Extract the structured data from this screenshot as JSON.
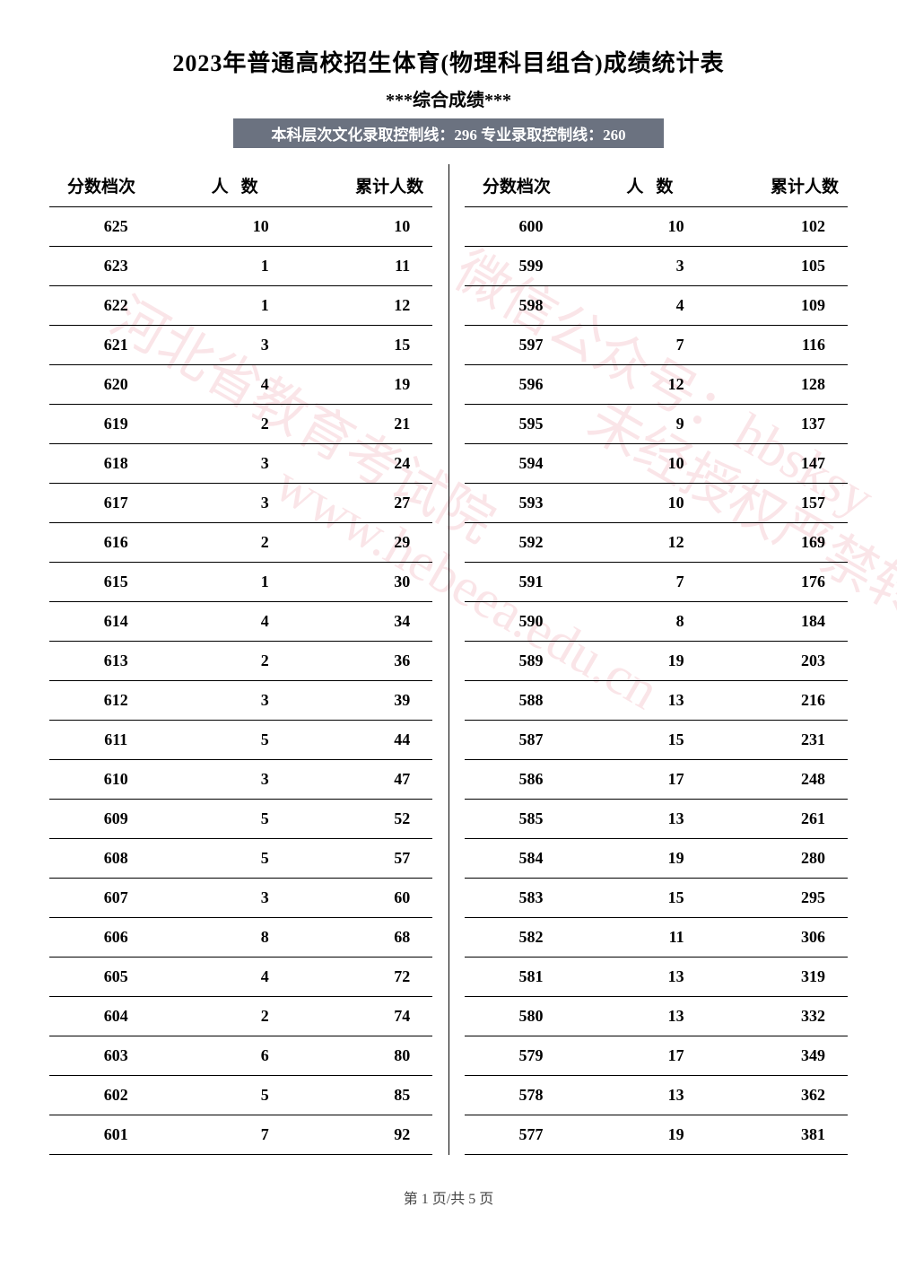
{
  "title": "2023年普通高校招生体育(物理科目组合)成绩统计表",
  "subtitle": "***综合成绩***",
  "info_bar": "本科层次文化录取控制线：296 专业录取控制线：260",
  "headers": {
    "col1": "分数档次",
    "col2": "人数",
    "col3": "累计人数"
  },
  "left_table": {
    "rows": [
      {
        "score": "625",
        "count": "10",
        "cumulative": "10"
      },
      {
        "score": "623",
        "count": "1",
        "cumulative": "11"
      },
      {
        "score": "622",
        "count": "1",
        "cumulative": "12"
      },
      {
        "score": "621",
        "count": "3",
        "cumulative": "15"
      },
      {
        "score": "620",
        "count": "4",
        "cumulative": "19"
      },
      {
        "score": "619",
        "count": "2",
        "cumulative": "21"
      },
      {
        "score": "618",
        "count": "3",
        "cumulative": "24"
      },
      {
        "score": "617",
        "count": "3",
        "cumulative": "27"
      },
      {
        "score": "616",
        "count": "2",
        "cumulative": "29"
      },
      {
        "score": "615",
        "count": "1",
        "cumulative": "30"
      },
      {
        "score": "614",
        "count": "4",
        "cumulative": "34"
      },
      {
        "score": "613",
        "count": "2",
        "cumulative": "36"
      },
      {
        "score": "612",
        "count": "3",
        "cumulative": "39"
      },
      {
        "score": "611",
        "count": "5",
        "cumulative": "44"
      },
      {
        "score": "610",
        "count": "3",
        "cumulative": "47"
      },
      {
        "score": "609",
        "count": "5",
        "cumulative": "52"
      },
      {
        "score": "608",
        "count": "5",
        "cumulative": "57"
      },
      {
        "score": "607",
        "count": "3",
        "cumulative": "60"
      },
      {
        "score": "606",
        "count": "8",
        "cumulative": "68"
      },
      {
        "score": "605",
        "count": "4",
        "cumulative": "72"
      },
      {
        "score": "604",
        "count": "2",
        "cumulative": "74"
      },
      {
        "score": "603",
        "count": "6",
        "cumulative": "80"
      },
      {
        "score": "602",
        "count": "5",
        "cumulative": "85"
      },
      {
        "score": "601",
        "count": "7",
        "cumulative": "92"
      }
    ]
  },
  "right_table": {
    "rows": [
      {
        "score": "600",
        "count": "10",
        "cumulative": "102"
      },
      {
        "score": "599",
        "count": "3",
        "cumulative": "105"
      },
      {
        "score": "598",
        "count": "4",
        "cumulative": "109"
      },
      {
        "score": "597",
        "count": "7",
        "cumulative": "116"
      },
      {
        "score": "596",
        "count": "12",
        "cumulative": "128"
      },
      {
        "score": "595",
        "count": "9",
        "cumulative": "137"
      },
      {
        "score": "594",
        "count": "10",
        "cumulative": "147"
      },
      {
        "score": "593",
        "count": "10",
        "cumulative": "157"
      },
      {
        "score": "592",
        "count": "12",
        "cumulative": "169"
      },
      {
        "score": "591",
        "count": "7",
        "cumulative": "176"
      },
      {
        "score": "590",
        "count": "8",
        "cumulative": "184"
      },
      {
        "score": "589",
        "count": "19",
        "cumulative": "203"
      },
      {
        "score": "588",
        "count": "13",
        "cumulative": "216"
      },
      {
        "score": "587",
        "count": "15",
        "cumulative": "231"
      },
      {
        "score": "586",
        "count": "17",
        "cumulative": "248"
      },
      {
        "score": "585",
        "count": "13",
        "cumulative": "261"
      },
      {
        "score": "584",
        "count": "19",
        "cumulative": "280"
      },
      {
        "score": "583",
        "count": "15",
        "cumulative": "295"
      },
      {
        "score": "582",
        "count": "11",
        "cumulative": "306"
      },
      {
        "score": "581",
        "count": "13",
        "cumulative": "319"
      },
      {
        "score": "580",
        "count": "13",
        "cumulative": "332"
      },
      {
        "score": "579",
        "count": "17",
        "cumulative": "349"
      },
      {
        "score": "578",
        "count": "13",
        "cumulative": "362"
      },
      {
        "score": "577",
        "count": "19",
        "cumulative": "381"
      }
    ]
  },
  "page_footer": "第 1 页/共 5 页",
  "watermarks": {
    "wm1": "河北省教育考试院",
    "wm2": "www.hebeea.edu.cn",
    "wm3": "微信公众号：hbsksy",
    "wm4": "未经授权严禁转载及使用",
    "wm5": "",
    "wm6": ""
  },
  "styling": {
    "background_color": "#ffffff",
    "text_color": "#000000",
    "info_bar_bg": "#6b7280",
    "info_bar_text": "#ffffff",
    "watermark_color": "rgba(220, 80, 100, 0.15)",
    "title_fontsize": 26,
    "subtitle_fontsize": 20,
    "header_fontsize": 19,
    "cell_fontsize": 18,
    "border_color": "#000000"
  }
}
